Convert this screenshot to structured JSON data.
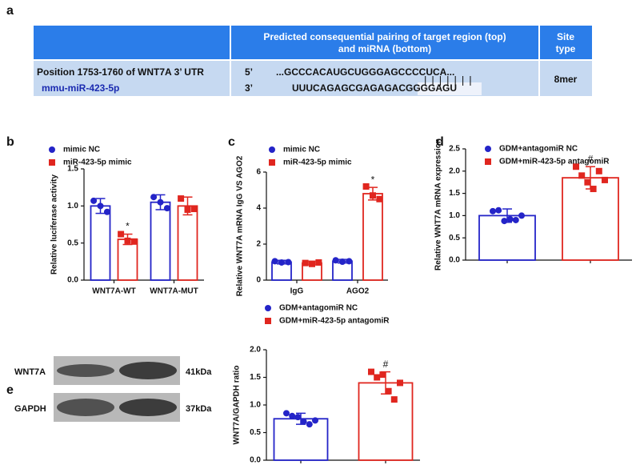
{
  "table": {
    "panel": "a",
    "header": {
      "pairing": [
        "Predicted consequential pairing of target region (top)",
        "and miRNA (bottom)"
      ],
      "site_type": [
        "Site",
        "type"
      ]
    },
    "row": {
      "target": "Position 1753-1760 of WNT7A 3’ UTR",
      "mirna": "mmu-miR-423-5p",
      "end_top": "5’",
      "seq_top": "...GCCCACAUGCUGGGAGCCCCUCA...",
      "pairs": "|||||||",
      "end_bottom": "3’",
      "seq_bottom": "UUUCAGAGCGAGAGACGGGGAGU",
      "site_type": "8mer"
    }
  },
  "blot": {
    "panel": "e",
    "bands": [
      {
        "name": "WNT7A",
        "size": "41kDa"
      },
      {
        "name": "GAPDH",
        "size": "37kDa"
      }
    ]
  },
  "chart_data": [
    {
      "type": "bar",
      "panel": "b",
      "ylabel": "Relative luciferase activity",
      "categories": [
        "WNT7A-WT",
        "WNT7A-MUT"
      ],
      "ylim": [
        0,
        1.5
      ],
      "yticks": [
        {
          "value": 0,
          "label": "0.0"
        },
        0.5,
        {
          "value": 1,
          "label": "1.0"
        },
        1.5
      ],
      "series": [
        {
          "name": "mimic NC",
          "color": "#2424c8",
          "marker": "circle",
          "values": [
            1.0,
            1.05
          ],
          "errors": [
            0.1,
            0.1
          ],
          "points": [
            [
              1.07,
              1.0,
              0.92
            ],
            [
              1.12,
              1.05,
              0.97
            ]
          ]
        },
        {
          "name": "miR-423-5p mimic",
          "color": "#e0261f",
          "marker": "square",
          "values": [
            0.55,
            1.0
          ],
          "errors": [
            0.07,
            0.12
          ],
          "points": [
            [
              0.62,
              0.53,
              0.52
            ],
            [
              1.1,
              0.95,
              0.96
            ]
          ],
          "annotations": [
            "*",
            null
          ]
        }
      ]
    },
    {
      "type": "bar",
      "panel": "c",
      "ylabel": "Relative WNT7A mRNA IgG VS AGO2",
      "categories": [
        "IgG",
        "AGO2"
      ],
      "ylim": [
        0,
        6
      ],
      "yticks": [
        0,
        2,
        4,
        6
      ],
      "series": [
        {
          "name": "mimic NC",
          "color": "#2424c8",
          "marker": "circle",
          "values": [
            1.0,
            1.05
          ],
          "errors": [
            0.1,
            0.1
          ],
          "points": [
            [
              1.05,
              0.98,
              1.0
            ],
            [
              1.1,
              1.02,
              1.05
            ]
          ]
        },
        {
          "name": "miR-423-5p mimic",
          "color": "#e0261f",
          "marker": "square",
          "values": [
            0.95,
            4.8
          ],
          "errors": [
            0.1,
            0.35
          ],
          "points": [
            [
              0.95,
              0.9,
              0.98
            ],
            [
              5.2,
              4.7,
              4.5
            ]
          ],
          "annotations": [
            null,
            "*"
          ]
        }
      ]
    },
    {
      "type": "bar",
      "panel": "d",
      "ylabel": "Relative WNT7A mRNA expression",
      "categories": [
        null
      ],
      "ylim": [
        0,
        2.5
      ],
      "yticks": [
        {
          "value": 0,
          "label": "0.0"
        },
        0.5,
        {
          "value": 1,
          "label": "1.0"
        },
        1.5,
        {
          "value": 2,
          "label": "2.0"
        },
        2.5
      ],
      "series": [
        {
          "name": "GDM+antagomiR NC",
          "color": "#2424c8",
          "marker": "circle",
          "values": [
            1.0
          ],
          "errors": [
            0.15
          ],
          "points": [
            [
              1.1,
              1.12,
              0.88,
              0.92,
              0.9,
              1.0
            ]
          ]
        },
        {
          "name": "GDM+miR-423-5p antagomiR",
          "color": "#e0261f",
          "marker": "square",
          "values": [
            1.85
          ],
          "errors": [
            0.25
          ],
          "points": [
            [
              2.1,
              1.9,
              1.75,
              1.6,
              2.0,
              1.8
            ]
          ],
          "annotations": [
            "#"
          ]
        }
      ]
    },
    {
      "type": "bar",
      "ylabel": "WNT7A/GAPDH ratio",
      "categories": [
        null
      ],
      "ylim": [
        0,
        2
      ],
      "yticks": [
        {
          "value": 0,
          "label": "0.0"
        },
        0.5,
        {
          "value": 1,
          "label": "1.0"
        },
        1.5,
        {
          "value": 2,
          "label": "2.0"
        }
      ],
      "series": [
        {
          "name": "GDM+antagomiR NC",
          "color": "#2424c8",
          "marker": "circle",
          "values": [
            0.75
          ],
          "errors": [
            0.1
          ],
          "points": [
            [
              0.85,
              0.8,
              0.78,
              0.7,
              0.65,
              0.72
            ]
          ]
        },
        {
          "name": "GDM+miR-423-5p antagomiR",
          "color": "#e0261f",
          "marker": "square",
          "values": [
            1.4
          ],
          "errors": [
            0.2
          ],
          "points": [
            [
              1.6,
              1.5,
              1.55,
              1.25,
              1.1,
              1.4
            ]
          ],
          "annotations": [
            "#"
          ]
        }
      ]
    }
  ]
}
